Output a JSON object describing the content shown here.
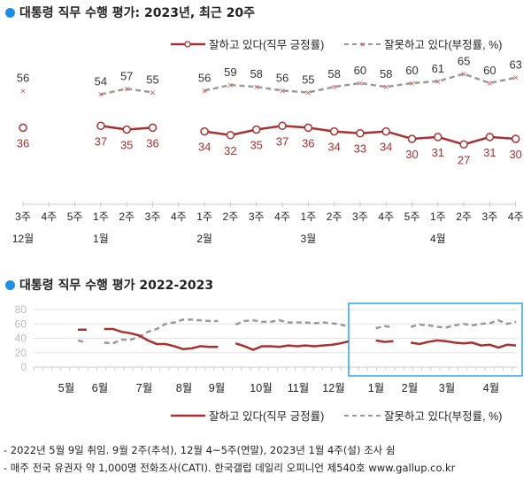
{
  "chart_data": [
    {
      "type": "line",
      "title": "대통령 직무 수행 평가: 2023년, 최근 20주",
      "categories": [
        "3주",
        "4주",
        "5주",
        "1주",
        "2주",
        "3주",
        "4주",
        "1주",
        "2주",
        "3주",
        "4주",
        "1주",
        "2주",
        "3주",
        "4주",
        "5주",
        "1주",
        "2주",
        "3주",
        "4주"
      ],
      "month_labels": [
        {
          "index": 0,
          "label": "12월"
        },
        {
          "index": 3,
          "label": "1월"
        },
        {
          "index": 7,
          "label": "2월"
        },
        {
          "index": 11,
          "label": "3월"
        },
        {
          "index": 16,
          "label": "4월"
        }
      ],
      "series": [
        {
          "name": "잘하고 있다(직무 긍정률)",
          "color": "#a8302e",
          "marker": "circle",
          "values": [
            36,
            null,
            null,
            37,
            35,
            36,
            null,
            34,
            32,
            35,
            37,
            36,
            34,
            33,
            34,
            30,
            31,
            27,
            31,
            30
          ]
        },
        {
          "name": "잘못하고 있다(부정률, %)",
          "color": "#9a9a9a",
          "marker": "x",
          "marker_color": "#d9534f",
          "values": [
            56,
            null,
            null,
            54,
            57,
            55,
            null,
            56,
            59,
            58,
            56,
            55,
            58,
            60,
            58,
            60,
            61,
            65,
            60,
            63
          ]
        }
      ],
      "legend_position": "top-right"
    },
    {
      "type": "line",
      "title": "대통령 직무 수행 평가 2022-2023",
      "ylim": [
        0,
        80
      ],
      "yticks": [
        "0",
        "20",
        "40",
        "60",
        "80"
      ],
      "grid": true,
      "month_labels": [
        "5월",
        "6월",
        "7월",
        "8월",
        "9월",
        "10월",
        "11월",
        "12월",
        "1월",
        "2월",
        "3월",
        "4월"
      ],
      "series": [
        {
          "name": "잘하고 있다(직무 긍정률)",
          "color": "#a8302e",
          "values": [
            52,
            52,
            null,
            53,
            53,
            49,
            47,
            44,
            37,
            32,
            32,
            29,
            25,
            26,
            29,
            28,
            28,
            null,
            33,
            29,
            24,
            29,
            29,
            28,
            30,
            29,
            30,
            29,
            30,
            31,
            33,
            36,
            null,
            null,
            37,
            35,
            36,
            null,
            34,
            32,
            35,
            37,
            36,
            34,
            33,
            34,
            30,
            31,
            27,
            31,
            30
          ]
        },
        {
          "name": "잘못하고 있다(부정률, %)",
          "color": "#9a9a9a",
          "values": [
            37,
            34,
            null,
            34,
            33,
            38,
            38,
            42,
            49,
            53,
            60,
            62,
            66,
            66,
            65,
            64,
            64,
            null,
            59,
            64,
            65,
            63,
            63,
            65,
            62,
            62,
            62,
            61,
            62,
            61,
            59,
            56,
            null,
            null,
            54,
            57,
            55,
            null,
            56,
            59,
            58,
            56,
            55,
            58,
            60,
            58,
            60,
            61,
            65,
            60,
            63
          ]
        }
      ],
      "highlight_color": "#29a8f0",
      "legend_position": "bottom-right"
    }
  ],
  "notes": [
    "- 2022년 5월 9일 취임. 9월 2주(추석), 12월 4~5주(연말), 2023년 1월 4주(설) 조사 쉼",
    "- 매주 전국 유권자 약 1,000명 전화조사(CATI). 한국갤럽 데일리 오피니언 제540호 www.gallup.co.kr"
  ]
}
